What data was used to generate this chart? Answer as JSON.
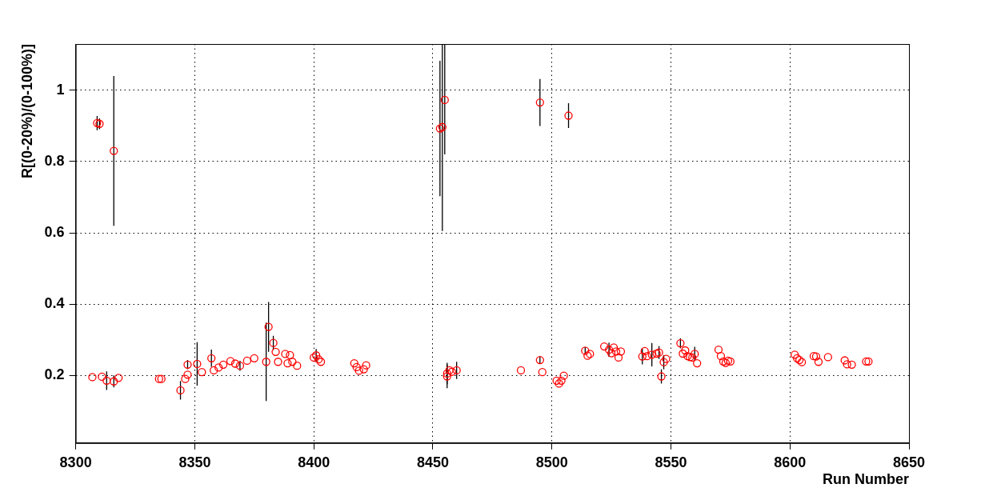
{
  "chart_data": {
    "type": "scatter",
    "xlabel": "Run Number",
    "ylabel": "R[(0-20%)/(0-100%)]",
    "xlim": [
      8300,
      8650
    ],
    "xticks": [
      8300,
      8350,
      8400,
      8450,
      8500,
      8550,
      8600,
      8650
    ],
    "ylim": [
      0.01,
      1.13
    ],
    "yticks": [
      0.2,
      0.4,
      0.6,
      0.8,
      1
    ],
    "grid": true,
    "legend": false,
    "marker": "circle",
    "series": [
      {
        "color": "#ff0000",
        "x": [
          8307,
          8309,
          8310,
          8311,
          8313,
          8316,
          8316,
          8318,
          8335,
          8336,
          8344,
          8346,
          8347,
          8347,
          8351,
          8353,
          8357,
          8358,
          8360,
          8362,
          8365,
          8367,
          8369,
          8372,
          8375,
          8380,
          8381,
          8383,
          8384,
          8385,
          8388,
          8390,
          8389,
          8391,
          8393,
          8400,
          8401,
          8402,
          8403,
          8417,
          8418,
          8419,
          8421,
          8422,
          8453,
          8454,
          8455,
          8456,
          8456,
          8457,
          8458,
          8460,
          8487,
          8495,
          8495,
          8496,
          8502,
          8503,
          8504,
          8505,
          8507,
          8514,
          8515,
          8516,
          8522,
          8524,
          8525,
          8526,
          8527,
          8528,
          8529,
          8538,
          8539,
          8540,
          8542,
          8544,
          8545,
          8546,
          8547,
          8548,
          8554,
          8555,
          8556,
          8557,
          8558,
          8559,
          8560,
          8561,
          8570,
          8571,
          8572,
          8573,
          8574,
          8575,
          8602,
          8603,
          8604,
          8605,
          8610,
          8611,
          8612,
          8616,
          8623,
          8624,
          8626,
          8632,
          8633
        ],
        "values": [
          0.195,
          0.908,
          0.906,
          0.196,
          0.185,
          0.183,
          0.83,
          0.193,
          0.19,
          0.19,
          0.158,
          0.19,
          0.23,
          0.202,
          0.232,
          0.209,
          0.248,
          0.214,
          0.222,
          0.23,
          0.24,
          0.233,
          0.227,
          0.241,
          0.248,
          0.238,
          0.336,
          0.291,
          0.266,
          0.238,
          0.26,
          0.257,
          0.234,
          0.238,
          0.227,
          0.25,
          0.256,
          0.245,
          0.238,
          0.234,
          0.223,
          0.213,
          0.217,
          0.228,
          0.893,
          0.897,
          0.973,
          0.197,
          0.205,
          0.214,
          0.21,
          0.214,
          0.214,
          0.966,
          0.243,
          0.209,
          0.185,
          0.177,
          0.185,
          0.199,
          0.929,
          0.269,
          0.255,
          0.26,
          0.281,
          0.272,
          0.262,
          0.278,
          0.267,
          0.25,
          0.267,
          0.253,
          0.268,
          0.254,
          0.258,
          0.261,
          0.264,
          0.197,
          0.237,
          0.246,
          0.29,
          0.261,
          0.27,
          0.254,
          0.251,
          0.25,
          0.26,
          0.234,
          0.272,
          0.254,
          0.239,
          0.235,
          0.241,
          0.239,
          0.258,
          0.248,
          0.243,
          0.237,
          0.254,
          0.253,
          0.238,
          0.251,
          0.242,
          0.231,
          0.23,
          0.239,
          0.239
        ],
        "errors": [
          null,
          0.02,
          0.015,
          null,
          0.026,
          0.017,
          0.21,
          null,
          null,
          null,
          0.026,
          null,
          0.013,
          null,
          0.061,
          null,
          0.024,
          null,
          null,
          null,
          null,
          null,
          0.014,
          null,
          null,
          0.11,
          0.07,
          0.02,
          null,
          null,
          null,
          null,
          null,
          null,
          null,
          null,
          0.018,
          null,
          null,
          null,
          null,
          null,
          null,
          null,
          0.19,
          [
            0.605,
            1.13
          ],
          [
            0.82,
            1.13
          ],
          0.033,
          0.03,
          null,
          null,
          0.024,
          null,
          0.066,
          0.01,
          null,
          null,
          null,
          null,
          null,
          0.035,
          0.01,
          null,
          null,
          null,
          0.02,
          null,
          null,
          null,
          null,
          null,
          0.022,
          null,
          null,
          0.033,
          null,
          0.018,
          0.02,
          0.02,
          null,
          0.014,
          null,
          null,
          null,
          null,
          null,
          0.02,
          null,
          null,
          null,
          null,
          null,
          null,
          null,
          null,
          null,
          null,
          null,
          null,
          null,
          null,
          null,
          null,
          null,
          null,
          null,
          null
        ]
      }
    ]
  }
}
